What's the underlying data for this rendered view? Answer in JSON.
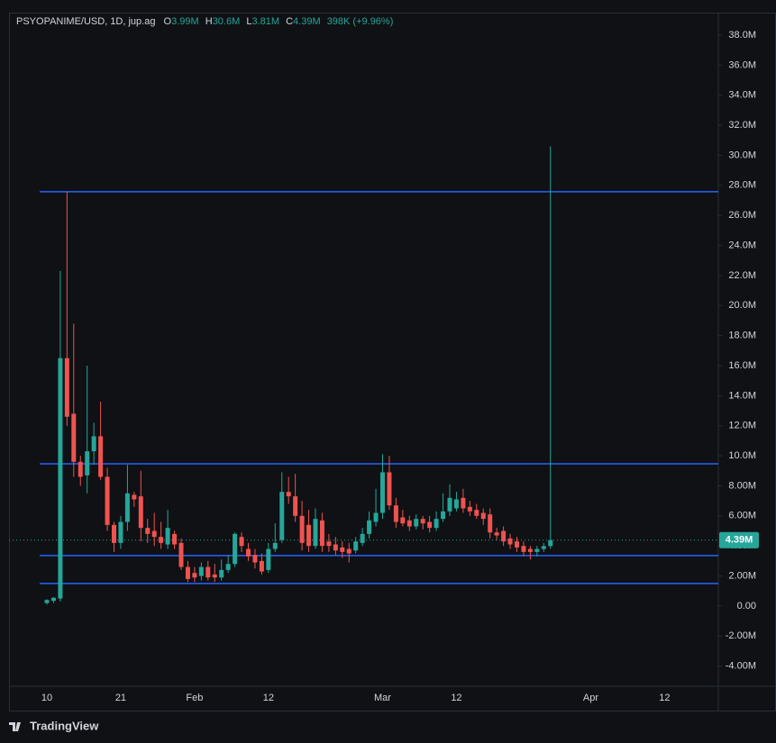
{
  "header": {
    "symbol": "PSYOPANIME/USD, 1D, jup.ag",
    "items": [
      {
        "label": "O",
        "value": "3.99M"
      },
      {
        "label": "H",
        "value": "30.6M"
      },
      {
        "label": "L",
        "value": "3.81M"
      },
      {
        "label": "C",
        "value": "4.39M"
      }
    ],
    "change": "398K (+9.96%)"
  },
  "footer": {
    "brand": "TradingView"
  },
  "chart_data": {
    "type": "candlestick",
    "categories": [
      "10",
      null,
      null,
      null,
      null,
      null,
      null,
      null,
      null,
      null,
      null,
      "21",
      null,
      null,
      null,
      null,
      null,
      null,
      null,
      null,
      null,
      null,
      "Feb",
      null,
      null,
      null,
      null,
      null,
      null,
      null,
      null,
      null,
      null,
      "12",
      null,
      null,
      null,
      null,
      null,
      null,
      null,
      null,
      null,
      null,
      null,
      null,
      null,
      null,
      null,
      null,
      "Mar",
      null,
      null,
      null,
      null,
      null,
      null,
      null,
      null,
      null,
      null,
      "12",
      null,
      null,
      null,
      null,
      null,
      null,
      null,
      null,
      null,
      null,
      null,
      null,
      null,
      null,
      null,
      null,
      null,
      null,
      null,
      "Apr",
      null,
      null,
      null,
      null,
      null,
      null,
      null,
      null,
      null,
      null,
      "12"
    ],
    "open": [
      0.2,
      0.35,
      0.5,
      16.5,
      12.8,
      9.6,
      8.7,
      10.3,
      11.3,
      8.6,
      5.4,
      4.2,
      5.6,
      7.4,
      7.3,
      5.2,
      5.0,
      4.6,
      4.1,
      4.8,
      4.2,
      2.6,
      2.2,
      2.0,
      2.6,
      2.1,
      1.9,
      2.4,
      2.8,
      4.6,
      3.8,
      3.4,
      3.0,
      2.4,
      3.8,
      4.4,
      7.6,
      7.3,
      6.0,
      5.4,
      4.0,
      5.7,
      4.3,
      4.1,
      3.9,
      3.8,
      3.7,
      4.2,
      4.8,
      5.6,
      6.2,
      8.9,
      6.7,
      5.9,
      5.7,
      5.3,
      5.8,
      5.6,
      5.2,
      5.8,
      6.3,
      6.5,
      7.2,
      6.6,
      6.4,
      6.2,
      6.1,
      4.9,
      5.0,
      4.5,
      4.3,
      4.0,
      3.8,
      3.6,
      3.8,
      3.99,
      null,
      null,
      null,
      null,
      null,
      null,
      null,
      null,
      null,
      null,
      null,
      null,
      null,
      null,
      null,
      null,
      null
    ],
    "high": [
      0.45,
      0.6,
      22.3,
      27.6,
      18.8,
      10.0,
      16.0,
      12.2,
      13.6,
      9.2,
      5.6,
      6.0,
      9.4,
      7.6,
      9.0,
      5.8,
      6.2,
      5.6,
      6.4,
      5.0,
      4.5,
      3.0,
      2.6,
      2.9,
      3.0,
      2.8,
      3.1,
      3.4,
      4.9,
      4.9,
      4.2,
      3.8,
      3.5,
      4.2,
      5.5,
      8.9,
      8.6,
      8.8,
      7.0,
      6.4,
      6.5,
      6.2,
      4.8,
      4.6,
      4.3,
      4.2,
      4.6,
      5.2,
      6.3,
      7.8,
      10.1,
      10.0,
      7.2,
      6.4,
      6.0,
      6.1,
      6.0,
      6.0,
      6.3,
      7.5,
      8.1,
      7.6,
      7.8,
      7.0,
      6.8,
      6.5,
      6.5,
      5.2,
      5.3,
      4.8,
      4.6,
      4.3,
      4.0,
      4.0,
      4.2,
      30.6,
      null,
      null,
      null,
      null,
      null,
      null,
      null,
      null,
      null,
      null,
      null,
      null,
      null,
      null,
      null,
      null,
      null
    ],
    "low": [
      0.1,
      0.2,
      0.3,
      12.0,
      8.6,
      8.0,
      7.5,
      9.4,
      8.4,
      5.0,
      3.6,
      3.8,
      5.0,
      6.6,
      4.3,
      4.2,
      4.0,
      3.8,
      3.8,
      3.8,
      2.4,
      1.6,
      1.6,
      1.7,
      1.7,
      1.6,
      1.7,
      2.2,
      2.6,
      3.6,
      3.0,
      2.5,
      2.1,
      2.2,
      3.6,
      4.2,
      6.8,
      5.6,
      3.7,
      3.6,
      3.8,
      3.6,
      3.6,
      3.4,
      3.2,
      2.9,
      3.5,
      4.0,
      4.5,
      5.3,
      5.8,
      6.4,
      5.2,
      5.3,
      5.0,
      5.1,
      5.1,
      4.9,
      5.0,
      5.6,
      6.0,
      6.3,
      6.2,
      6.0,
      5.8,
      5.4,
      4.5,
      4.4,
      4.0,
      3.8,
      3.6,
      3.3,
      3.1,
      3.3,
      3.6,
      3.81,
      null,
      null,
      null,
      null,
      null,
      null,
      null,
      null,
      null,
      null,
      null,
      null,
      null,
      null,
      null,
      null,
      null
    ],
    "close": [
      0.4,
      0.55,
      16.5,
      12.6,
      9.6,
      8.6,
      10.3,
      11.3,
      8.6,
      5.4,
      4.2,
      5.6,
      7.5,
      7.1,
      5.2,
      4.8,
      4.6,
      4.2,
      5.2,
      4.1,
      2.6,
      1.8,
      1.9,
      2.6,
      1.9,
      1.9,
      2.4,
      2.8,
      4.8,
      4.0,
      3.3,
      2.9,
      2.3,
      3.8,
      4.2,
      7.6,
      7.3,
      6.0,
      4.2,
      4.0,
      5.8,
      4.0,
      4.0,
      3.7,
      3.6,
      3.5,
      4.3,
      4.8,
      5.7,
      6.2,
      8.9,
      6.7,
      5.6,
      5.5,
      5.3,
      5.8,
      5.5,
      5.2,
      5.8,
      6.3,
      7.2,
      7.1,
      6.5,
      6.3,
      6.0,
      5.8,
      4.9,
      4.7,
      4.3,
      4.1,
      3.9,
      3.6,
      3.6,
      3.8,
      3.99,
      4.39,
      null,
      null,
      null,
      null,
      null,
      null,
      null,
      null,
      null,
      null,
      null,
      null,
      null,
      null,
      null,
      null,
      null
    ],
    "up_color": "#26a69a",
    "down_color": "#ef5350",
    "levels": [
      27.58,
      9.47,
      3.36,
      1.5
    ],
    "levels_color": "#2962ff",
    "last_price": {
      "value": 4.39,
      "label": "4.39M"
    },
    "ylim": [
      -5.34,
      39.5
    ],
    "yticks": [
      {
        "value": -4,
        "label": "-4.00M"
      },
      {
        "value": -2,
        "label": "-2.00M"
      },
      {
        "value": 0,
        "label": "0.00"
      },
      {
        "value": 2,
        "label": "2.00M"
      },
      {
        "value": 4,
        "label": "4.00M"
      },
      {
        "value": 6,
        "label": "6.00M"
      },
      {
        "value": 8,
        "label": "8.00M"
      },
      {
        "value": 10,
        "label": "10.0M"
      },
      {
        "value": 12,
        "label": "12.0M"
      },
      {
        "value": 14,
        "label": "14.0M"
      },
      {
        "value": 16,
        "label": "16.0M"
      },
      {
        "value": 18,
        "label": "18.0M"
      },
      {
        "value": 20,
        "label": "20.0M"
      },
      {
        "value": 22,
        "label": "22.0M"
      },
      {
        "value": 24,
        "label": "24.0M"
      },
      {
        "value": 26,
        "label": "26.0M"
      },
      {
        "value": 28,
        "label": "28.0M"
      },
      {
        "value": 30,
        "label": "30.0M"
      },
      {
        "value": 32,
        "label": "32.0M"
      },
      {
        "value": 34,
        "label": "34.0M"
      },
      {
        "value": 36,
        "label": "36.0M"
      },
      {
        "value": 38,
        "label": "38.0M"
      }
    ],
    "grid": false
  }
}
